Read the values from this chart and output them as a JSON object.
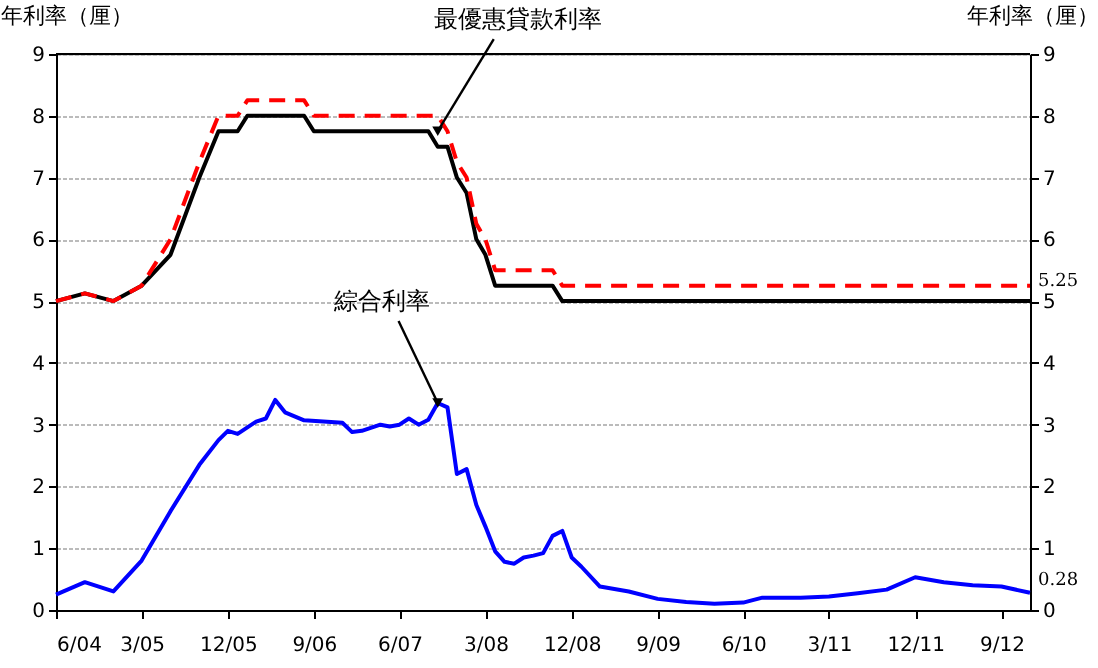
{
  "chart_data": {
    "type": "line",
    "ylabel": "年利率（厘）",
    "y2label": "年利率（厘）",
    "xlim": [
      "2004-06",
      "2012-12"
    ],
    "xticks": [
      {
        "value": "2004-06",
        "label": "6/04"
      },
      {
        "value": "2005-03",
        "label": "3/05"
      },
      {
        "value": "2005-12",
        "label": "12/05"
      },
      {
        "value": "2006-09",
        "label": "9/06"
      },
      {
        "value": "2007-06",
        "label": "6/07"
      },
      {
        "value": "2008-03",
        "label": "3/08"
      },
      {
        "value": "2008-12",
        "label": "12/08"
      },
      {
        "value": "2009-09",
        "label": "9/09"
      },
      {
        "value": "2010-06",
        "label": "6/10"
      },
      {
        "value": "2011-03",
        "label": "3/11"
      },
      {
        "value": "2011-12",
        "label": "12/11"
      },
      {
        "value": "2012-09",
        "label": "9/12"
      }
    ],
    "ylim": [
      0,
      9
    ],
    "yticks": [
      0,
      1,
      2,
      3,
      4,
      5,
      6,
      7,
      8,
      9
    ],
    "y2lim": [
      0,
      9
    ],
    "y2ticks": [
      0,
      1,
      2,
      3,
      4,
      5,
      6,
      7,
      8,
      9
    ],
    "grid": "y",
    "marker": "none",
    "series": [
      {
        "color": "#ff0000",
        "line_style": "dashed",
        "x": [
          "2004-06",
          "2004-09",
          "2004-12",
          "2005-03",
          "2005-06",
          "2005-09",
          "2005-11",
          "2006-01",
          "2006-02",
          "2006-08",
          "2006-09",
          "2007-10",
          "2007-11",
          "2007-12",
          "2008-01",
          "2008-02",
          "2008-03",
          "2008-04",
          "2008-10",
          "2008-11",
          "2012-12"
        ],
        "values": [
          5,
          5.125,
          5,
          5.25,
          6,
          7.25,
          8,
          8,
          8.25,
          8.25,
          8,
          8,
          7.75,
          7.25,
          7,
          6.25,
          6,
          5.5,
          5.5,
          5.25,
          5.25
        ]
      },
      {
        "color": "#000000",
        "line_style": "solid",
        "x": [
          "2004-06",
          "2004-09",
          "2004-12",
          "2005-03",
          "2005-06",
          "2005-09",
          "2005-11",
          "2006-01",
          "2006-02",
          "2006-08",
          "2006-09",
          "2007-09",
          "2007-10",
          "2007-11",
          "2007-12",
          "2008-01",
          "2008-02",
          "2008-03",
          "2008-04",
          "2008-10",
          "2008-11",
          "2012-12"
        ],
        "values": [
          5,
          5.125,
          5,
          5.25,
          5.75,
          7,
          7.75,
          7.75,
          8,
          8,
          7.75,
          7.75,
          7.5,
          7.5,
          7,
          6.75,
          6,
          5.75,
          5.25,
          5.25,
          5,
          5
        ]
      },
      {
        "color": "#0000ff",
        "line_style": "solid",
        "x": [
          "2004-06",
          "2004-09",
          "2004-12",
          "2005-03",
          "2005-06",
          "2005-09",
          "2005-11",
          "2005-12",
          "2006-01",
          "2006-03",
          "2006-04",
          "2006-05",
          "2006-06",
          "2006-08",
          "2006-10",
          "2006-12",
          "2007-01",
          "2007-02",
          "2007-04",
          "2007-05",
          "2007-06",
          "2007-07",
          "2007-08",
          "2007-09",
          "2007-10",
          "2007-11",
          "2007-12",
          "2008-01",
          "2008-02",
          "2008-03",
          "2008-04",
          "2008-05",
          "2008-06",
          "2008-07",
          "2008-08",
          "2008-09",
          "2008-10",
          "2008-11",
          "2008-12",
          "2009-01",
          "2009-03",
          "2009-06",
          "2009-09",
          "2009-12",
          "2010-03",
          "2010-06",
          "2010-07",
          "2010-08",
          "2010-12",
          "2011-03",
          "2011-06",
          "2011-09",
          "2011-12",
          "2012-03",
          "2012-06",
          "2012-09",
          "2012-12"
        ],
        "values": [
          0.25,
          0.45,
          0.3,
          0.8,
          1.6,
          2.35,
          2.75,
          2.9,
          2.85,
          3.05,
          3.1,
          3.4,
          3.2,
          3.07,
          3.05,
          3.03,
          2.88,
          2.9,
          3.0,
          2.97,
          3.0,
          3.1,
          3.0,
          3.08,
          3.35,
          3.28,
          2.2,
          2.28,
          1.7,
          1.35,
          0.95,
          0.78,
          0.75,
          0.85,
          0.88,
          0.92,
          1.2,
          1.28,
          0.85,
          0.7,
          0.38,
          0.3,
          0.18,
          0.13,
          0.1,
          0.12,
          0.16,
          0.2,
          0.2,
          0.22,
          0.27,
          0.33,
          0.53,
          0.45,
          0.4,
          0.38,
          0.28
        ]
      }
    ],
    "annotations": [
      {
        "text": "最優惠貸款利率",
        "x": "2007-10",
        "y": 7.75
      },
      {
        "text": "綜合利率",
        "x": "2007-10",
        "y": 3.35
      },
      {
        "text": "5.25",
        "x": "2012-12",
        "y": 5.25
      },
      {
        "text": "0.28",
        "x": "2012-12",
        "y": 0.28
      }
    ]
  }
}
